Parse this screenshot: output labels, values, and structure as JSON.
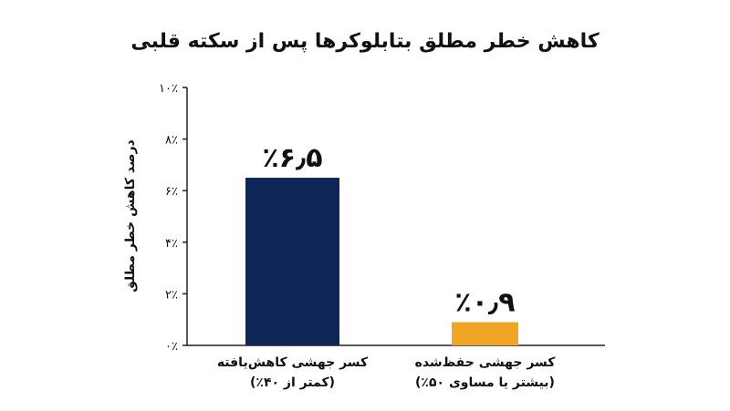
{
  "chart_data": {
    "type": "bar",
    "title": "کاهش خطر مطلق بتابلوکرها پس از سکته قلبی",
    "ylabel": "درصد کاهش خطر مطلق",
    "xlabel": "",
    "ylim": [
      0,
      10
    ],
    "yticks": [
      0,
      2,
      4,
      6,
      8,
      10
    ],
    "ytick_labels": [
      "۰٪",
      "۲٪",
      "۴٪",
      "۶٪",
      "۸٪",
      "۱۰٪"
    ],
    "grid": false,
    "categories": [
      {
        "line1": "کسر جهشی کاهش‌یافته",
        "line2": "(کمتر از ۴۰٪)"
      },
      {
        "line1": "کسر جهشی حفظ‌شده",
        "line2": "(بیشتر یا مساوی ۵۰٪)"
      }
    ],
    "values": [
      6.5,
      0.9
    ],
    "data_labels": [
      "٪۶٫۵",
      "٪۰٫۹"
    ],
    "colors": [
      "#0d2657",
      "#f0a524"
    ]
  }
}
